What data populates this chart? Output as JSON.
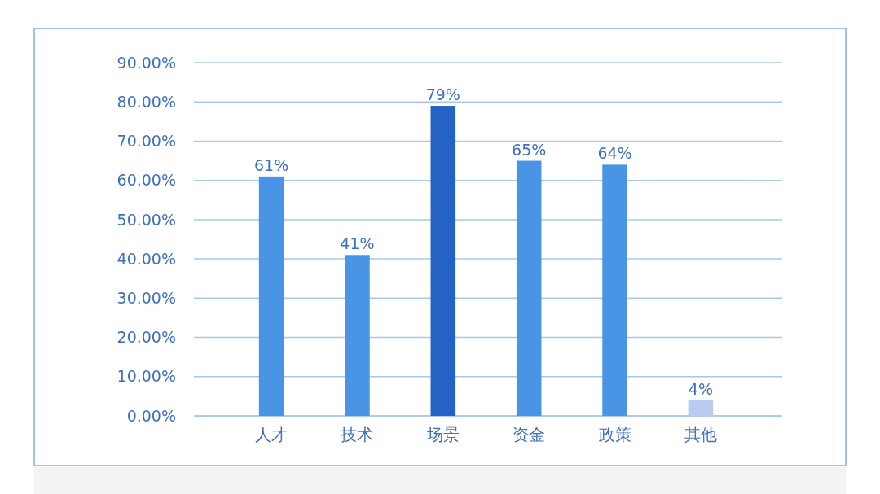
{
  "chart_data": {
    "type": "bar",
    "categories": [
      "人才",
      "技术",
      "场景",
      "资金",
      "政策",
      "其他"
    ],
    "values": [
      61,
      41,
      79,
      65,
      64,
      4
    ],
    "colors": [
      "#4a94e6",
      "#4a94e6",
      "#2562c6",
      "#4a94e6",
      "#4a94e6",
      "#b9cbf0"
    ],
    "value_labels": [
      "61%",
      "41%",
      "79%",
      "65%",
      "64%",
      "4%"
    ],
    "ylim": [
      0,
      90
    ],
    "yticks": [
      {
        "value": 0,
        "label": "0.00%"
      },
      {
        "value": 10,
        "label": "10.00%"
      },
      {
        "value": 20,
        "label": "20.00%"
      },
      {
        "value": 30,
        "label": "30.00%"
      },
      {
        "value": 40,
        "label": "40.00%"
      },
      {
        "value": 50,
        "label": "50.00%"
      },
      {
        "value": 60,
        "label": "60.00%"
      },
      {
        "value": 70,
        "label": "70.00%"
      },
      {
        "value": 80,
        "label": "80.00%"
      },
      {
        "value": 90,
        "label": "90.00%"
      }
    ],
    "grid": "y"
  }
}
